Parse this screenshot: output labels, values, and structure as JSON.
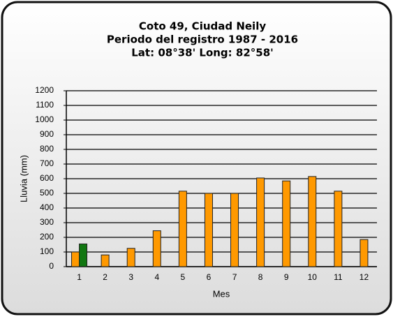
{
  "chart_data": {
    "type": "bar",
    "title": [
      "Coto 49, Ciudad Neily",
      "Periodo del registro 1987 - 2016",
      "Lat: 08°38' Long: 82°58'"
    ],
    "x_label": "Mes",
    "y_label": "Lluvia (mm)",
    "categories": [
      "1",
      "2",
      "3",
      "4",
      "5",
      "6",
      "7",
      "8",
      "9",
      "10",
      "11",
      "12"
    ],
    "series": [
      {
        "color": "#ff9900",
        "values": [
          100,
          80,
          125,
          245,
          515,
          500,
          500,
          605,
          585,
          615,
          515,
          185
        ]
      },
      {
        "color": "#117711",
        "values": [
          155,
          null,
          null,
          null,
          null,
          null,
          null,
          null,
          null,
          null,
          null,
          null
        ]
      }
    ],
    "ylim": [
      0,
      1200
    ],
    "yticks": [
      0,
      100,
      200,
      300,
      400,
      500,
      600,
      700,
      800,
      900,
      1000,
      1100,
      1200
    ],
    "grid": true
  }
}
